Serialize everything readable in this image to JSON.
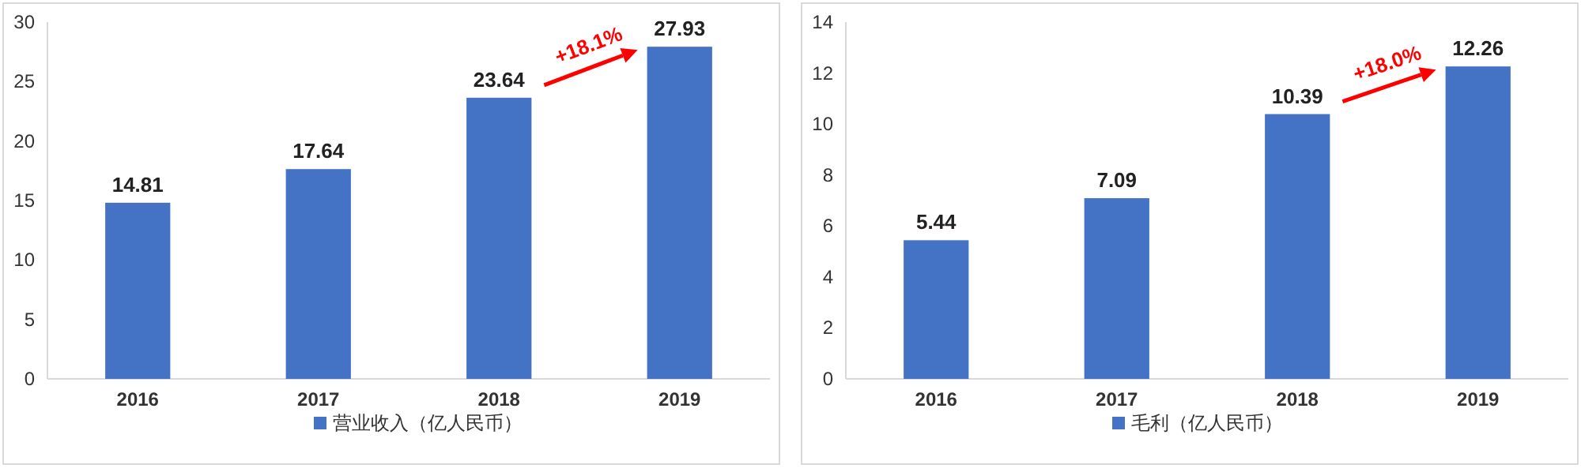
{
  "chart_data": [
    {
      "type": "bar",
      "categories": [
        "2016",
        "2017",
        "2018",
        "2019"
      ],
      "series": [
        {
          "name": "营业收入（亿人民币）",
          "color": "#4472c4",
          "values": [
            14.81,
            17.64,
            23.64,
            27.93
          ]
        }
      ],
      "ylim": [
        0,
        30
      ],
      "yticks": [
        0,
        5,
        10,
        15,
        20,
        25,
        30
      ],
      "data_labels": true,
      "legend": "bottom",
      "annotations": [
        "+18.1%"
      ]
    },
    {
      "type": "bar",
      "categories": [
        "2016",
        "2017",
        "2018",
        "2019"
      ],
      "series": [
        {
          "name": "毛利（亿人民币）",
          "color": "#4472c4",
          "values": [
            5.44,
            7.09,
            10.39,
            12.26
          ]
        }
      ],
      "ylim": [
        0,
        14
      ],
      "yticks": [
        0,
        2,
        4,
        6,
        8,
        10,
        12,
        14
      ],
      "data_labels": true,
      "legend": "bottom",
      "annotations": [
        "+18.0%"
      ]
    }
  ]
}
